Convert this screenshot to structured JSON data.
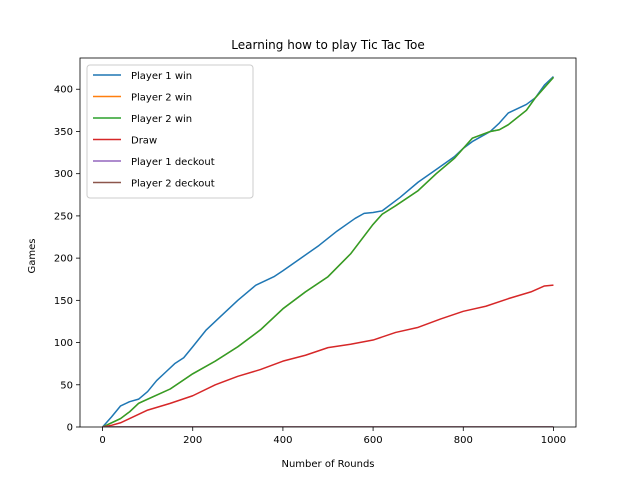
{
  "chart_data": {
    "type": "line",
    "title": "Learning how to play Tic Tac Toe",
    "xlabel": "Number of Rounds",
    "ylabel": "Games",
    "xlim": [
      -50,
      1050
    ],
    "ylim": [
      0,
      437
    ],
    "xticks": [
      0,
      200,
      400,
      600,
      800,
      1000
    ],
    "yticks": [
      0,
      50,
      100,
      150,
      200,
      250,
      300,
      350,
      400
    ],
    "grid": false,
    "legend_position": "upper-left",
    "series": [
      {
        "name": "Player 1 win",
        "color": "#1f77b4",
        "x": [
          0,
          20,
          40,
          60,
          80,
          100,
          120,
          140,
          160,
          180,
          200,
          230,
          260,
          300,
          340,
          380,
          400,
          440,
          480,
          520,
          560,
          580,
          600,
          620,
          660,
          700,
          740,
          780,
          800,
          820,
          860,
          880,
          900,
          940,
          960,
          980,
          1000
        ],
        "y": [
          0,
          12,
          25,
          30,
          33,
          42,
          55,
          65,
          75,
          82,
          95,
          115,
          130,
          150,
          168,
          178,
          185,
          200,
          215,
          232,
          247,
          253,
          254,
          256,
          272,
          290,
          305,
          320,
          330,
          338,
          350,
          360,
          372,
          382,
          390,
          405,
          415
        ]
      },
      {
        "name": "Player 2 win",
        "color": "#ff7f0e",
        "x": [
          0,
          20,
          40,
          60,
          80,
          100,
          150,
          200,
          250,
          300,
          350,
          400,
          450,
          500,
          550,
          600,
          620,
          650,
          700,
          740,
          780,
          800,
          820,
          860,
          880,
          900,
          940,
          960,
          1000
        ],
        "y": [
          0,
          5,
          10,
          18,
          28,
          33,
          45,
          63,
          78,
          95,
          115,
          140,
          160,
          178,
          205,
          240,
          252,
          262,
          280,
          300,
          318,
          330,
          342,
          350,
          352,
          358,
          375,
          390,
          414
        ]
      },
      {
        "name": "Player 2 win",
        "color": "#2ca02c",
        "x": [
          0,
          20,
          40,
          60,
          80,
          100,
          150,
          200,
          250,
          300,
          350,
          400,
          450,
          500,
          550,
          600,
          620,
          650,
          700,
          740,
          780,
          800,
          820,
          860,
          880,
          900,
          940,
          960,
          1000
        ],
        "y": [
          0,
          5,
          10,
          18,
          28,
          33,
          45,
          63,
          78,
          95,
          115,
          140,
          160,
          178,
          205,
          240,
          252,
          262,
          280,
          300,
          318,
          330,
          342,
          350,
          352,
          358,
          375,
          390,
          414
        ]
      },
      {
        "name": "Draw",
        "color": "#d62728",
        "x": [
          0,
          20,
          40,
          60,
          80,
          100,
          150,
          200,
          250,
          300,
          350,
          400,
          450,
          500,
          550,
          600,
          650,
          700,
          750,
          800,
          850,
          900,
          950,
          980,
          1000
        ],
        "y": [
          0,
          2,
          5,
          10,
          15,
          20,
          28,
          37,
          50,
          60,
          68,
          78,
          85,
          94,
          98,
          103,
          112,
          118,
          128,
          137,
          143,
          152,
          160,
          167,
          168
        ]
      },
      {
        "name": "Player 1 deckout",
        "color": "#9467bd",
        "x": [
          0,
          1000
        ],
        "y": [
          0,
          0
        ]
      },
      {
        "name": "Player 2 deckout",
        "color": "#8c564b",
        "x": [
          0,
          1000
        ],
        "y": [
          0,
          0
        ]
      }
    ]
  }
}
